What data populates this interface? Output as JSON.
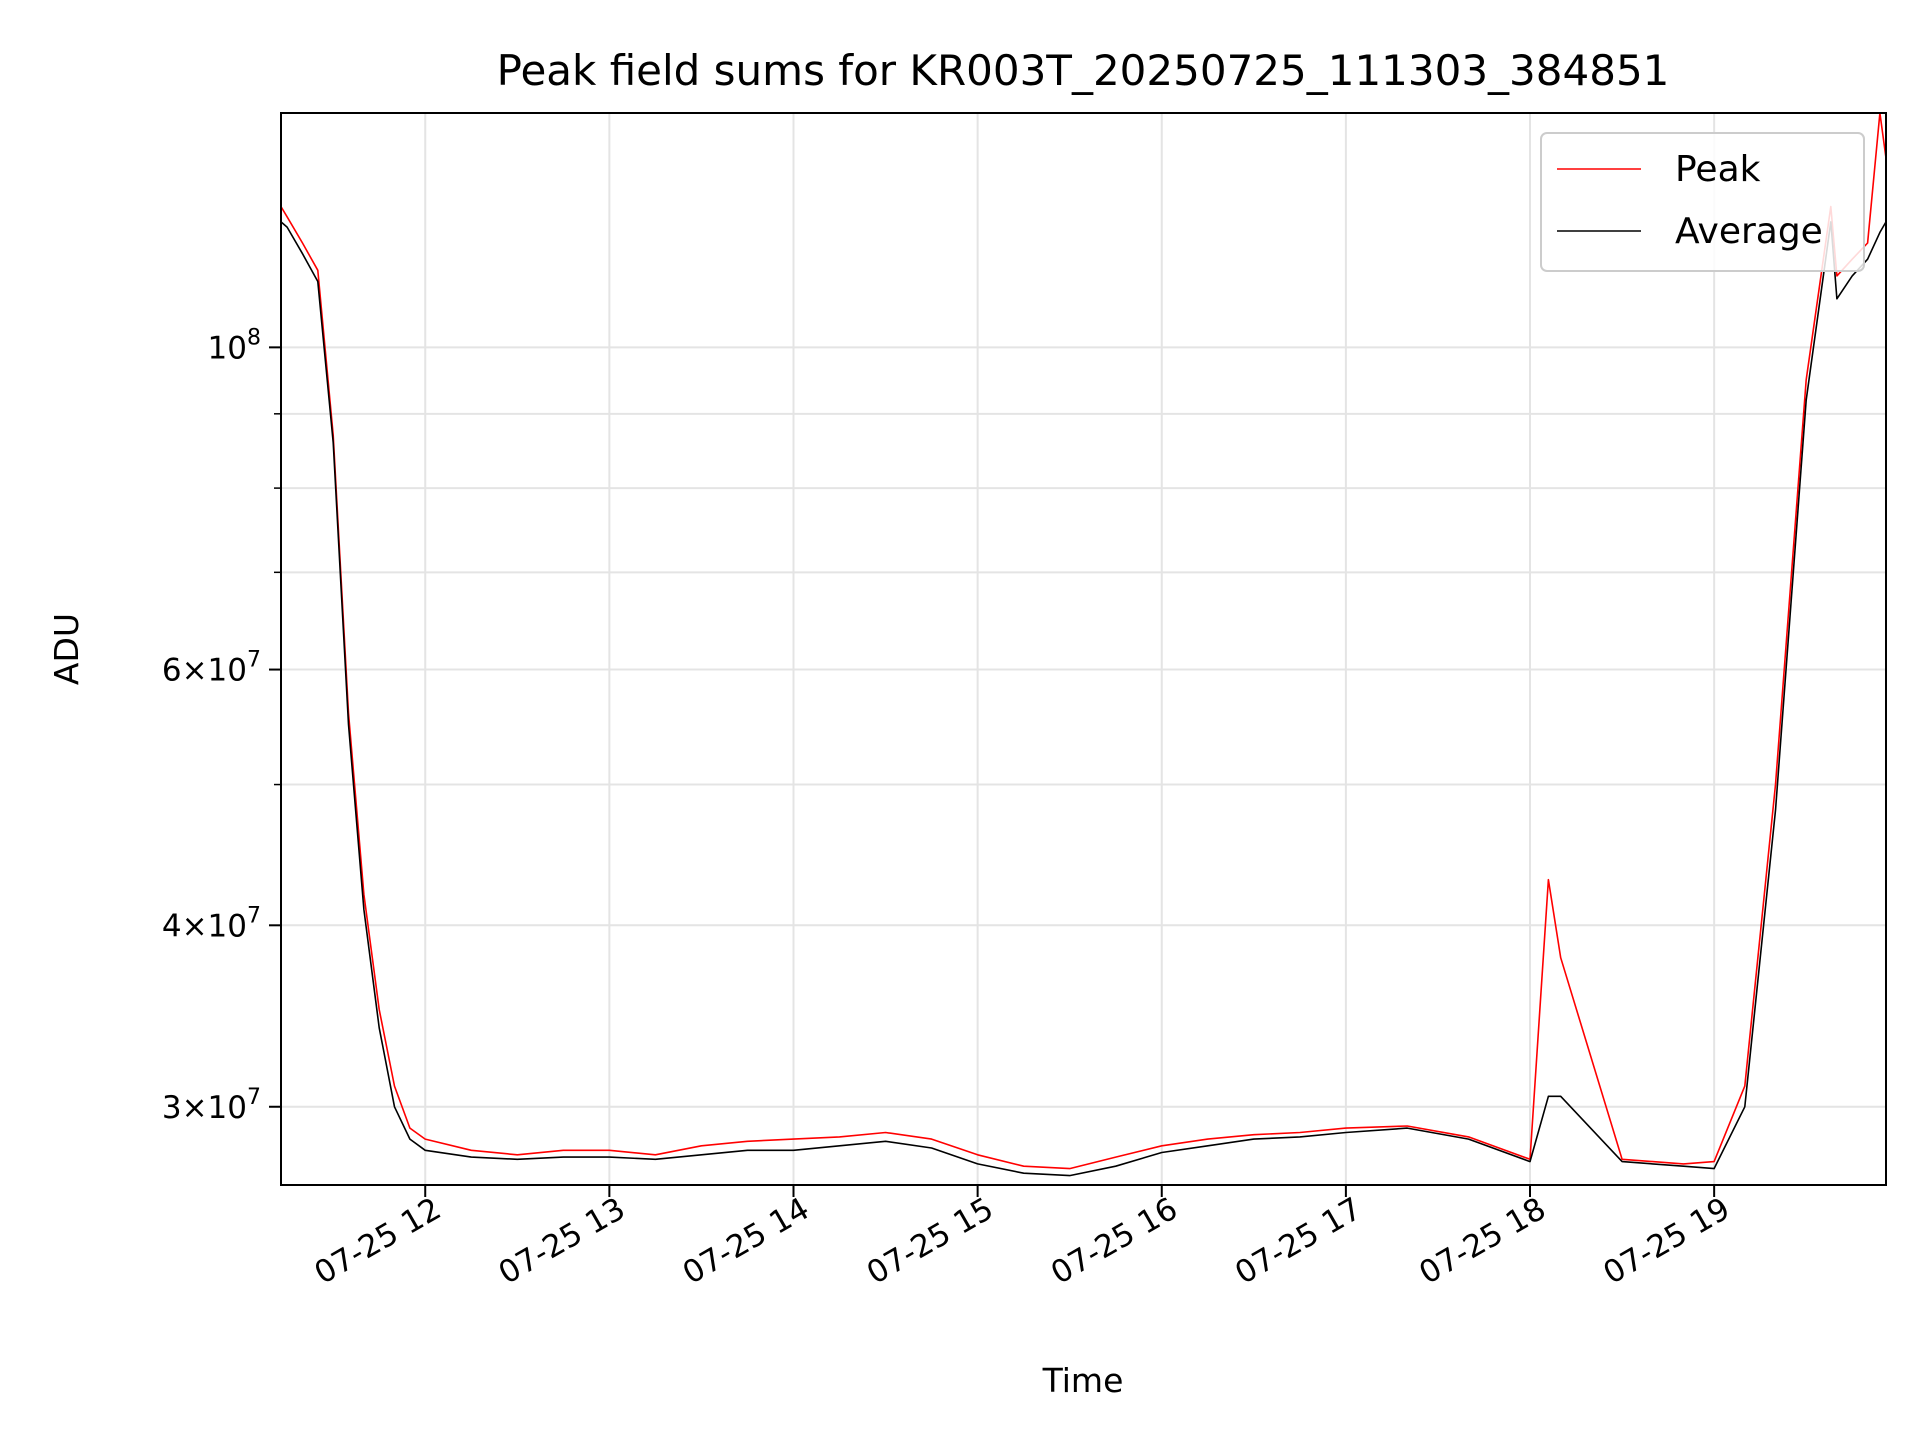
{
  "chart_data": {
    "type": "line",
    "title": "Peak field sums for KR003T_20250725_111303_384851",
    "xlabel": "Time",
    "ylabel": "ADU",
    "y_scale": "log",
    "ylim": [
      26500000,
      145000000
    ],
    "x_range": [
      "2025-07-25 11:13",
      "2025-07-25 19:56"
    ],
    "x_ticks": [
      "07-25 12",
      "07-25 13",
      "07-25 14",
      "07-25 15",
      "07-25 16",
      "07-25 17",
      "07-25 18",
      "07-25 19"
    ],
    "x_tick_times": [
      "2025-07-25 12:00",
      "2025-07-25 13:00",
      "2025-07-25 14:00",
      "2025-07-25 15:00",
      "2025-07-25 16:00",
      "2025-07-25 17:00",
      "2025-07-25 18:00",
      "2025-07-25 19:00"
    ],
    "y_ticks": [
      {
        "value": 100000000,
        "label": "10",
        "exp": "8"
      },
      {
        "value": 60000000,
        "label": "6×10",
        "exp": "7"
      },
      {
        "value": 40000000,
        "label": "4×10",
        "exp": "7"
      },
      {
        "value": 30000000,
        "label": "3×10",
        "exp": "7"
      }
    ],
    "y_minor_ticks": [
      90000000,
      80000000,
      70000000,
      50000000
    ],
    "grid": true,
    "legend": {
      "position": "top-right",
      "entries": [
        "Peak",
        "Average"
      ]
    },
    "colors": {
      "Peak": "#ff0000",
      "Average": "#000000"
    },
    "series": [
      {
        "name": "Peak",
        "x": [
          "2025-07-25 11:13",
          "2025-07-25 11:15",
          "2025-07-25 11:20",
          "2025-07-25 11:25",
          "2025-07-25 11:30",
          "2025-07-25 11:35",
          "2025-07-25 11:40",
          "2025-07-25 11:45",
          "2025-07-25 11:50",
          "2025-07-25 11:55",
          "2025-07-25 12:00",
          "2025-07-25 12:15",
          "2025-07-25 12:30",
          "2025-07-25 12:45",
          "2025-07-25 13:00",
          "2025-07-25 13:15",
          "2025-07-25 13:30",
          "2025-07-25 13:45",
          "2025-07-25 14:00",
          "2025-07-25 14:15",
          "2025-07-25 14:30",
          "2025-07-25 14:45",
          "2025-07-25 15:00",
          "2025-07-25 15:15",
          "2025-07-25 15:30",
          "2025-07-25 15:45",
          "2025-07-25 16:00",
          "2025-07-25 16:15",
          "2025-07-25 16:30",
          "2025-07-25 16:45",
          "2025-07-25 17:00",
          "2025-07-25 17:20",
          "2025-07-25 17:40",
          "2025-07-25 18:00",
          "2025-07-25 18:06",
          "2025-07-25 18:10",
          "2025-07-25 18:30",
          "2025-07-25 18:50",
          "2025-07-25 19:00",
          "2025-07-25 19:10",
          "2025-07-25 19:20",
          "2025-07-25 19:30",
          "2025-07-25 19:38",
          "2025-07-25 19:40",
          "2025-07-25 19:45",
          "2025-07-25 19:50",
          "2025-07-25 19:54",
          "2025-07-25 19:56"
        ],
        "values": [
          125000000,
          123000000,
          118000000,
          113000000,
          87000000,
          56000000,
          42000000,
          35000000,
          31000000,
          29000000,
          28500000,
          28000000,
          27800000,
          28000000,
          28000000,
          27800000,
          28200000,
          28400000,
          28500000,
          28600000,
          28800000,
          28500000,
          27800000,
          27300000,
          27200000,
          27700000,
          28200000,
          28500000,
          28700000,
          28800000,
          29000000,
          29100000,
          28600000,
          27600000,
          43000000,
          38000000,
          27600000,
          27400000,
          27500000,
          31000000,
          50000000,
          95000000,
          125000000,
          112000000,
          115000000,
          118000000,
          145000000,
          135000000
        ]
      },
      {
        "name": "Average",
        "x": [
          "2025-07-25 11:13",
          "2025-07-25 11:15",
          "2025-07-25 11:20",
          "2025-07-25 11:25",
          "2025-07-25 11:30",
          "2025-07-25 11:35",
          "2025-07-25 11:40",
          "2025-07-25 11:45",
          "2025-07-25 11:50",
          "2025-07-25 11:55",
          "2025-07-25 12:00",
          "2025-07-25 12:15",
          "2025-07-25 12:30",
          "2025-07-25 12:45",
          "2025-07-25 13:00",
          "2025-07-25 13:15",
          "2025-07-25 13:30",
          "2025-07-25 13:45",
          "2025-07-25 14:00",
          "2025-07-25 14:15",
          "2025-07-25 14:30",
          "2025-07-25 14:45",
          "2025-07-25 15:00",
          "2025-07-25 15:15",
          "2025-07-25 15:30",
          "2025-07-25 15:45",
          "2025-07-25 16:00",
          "2025-07-25 16:15",
          "2025-07-25 16:30",
          "2025-07-25 16:45",
          "2025-07-25 17:00",
          "2025-07-25 17:20",
          "2025-07-25 17:40",
          "2025-07-25 18:00",
          "2025-07-25 18:06",
          "2025-07-25 18:10",
          "2025-07-25 18:30",
          "2025-07-25 18:50",
          "2025-07-25 19:00",
          "2025-07-25 19:10",
          "2025-07-25 19:20",
          "2025-07-25 19:30",
          "2025-07-25 19:38",
          "2025-07-25 19:40",
          "2025-07-25 19:45",
          "2025-07-25 19:50",
          "2025-07-25 19:54",
          "2025-07-25 19:56"
        ],
        "values": [
          122000000,
          121000000,
          116000000,
          111000000,
          86000000,
          55000000,
          41000000,
          34000000,
          30000000,
          28500000,
          28000000,
          27700000,
          27600000,
          27700000,
          27700000,
          27600000,
          27800000,
          28000000,
          28000000,
          28200000,
          28400000,
          28100000,
          27400000,
          27000000,
          26900000,
          27300000,
          27900000,
          28200000,
          28500000,
          28600000,
          28800000,
          29000000,
          28500000,
          27500000,
          30500000,
          30500000,
          27500000,
          27300000,
          27200000,
          30000000,
          48000000,
          92000000,
          122000000,
          108000000,
          112000000,
          115000000,
          120000000,
          122000000
        ]
      }
    ]
  }
}
